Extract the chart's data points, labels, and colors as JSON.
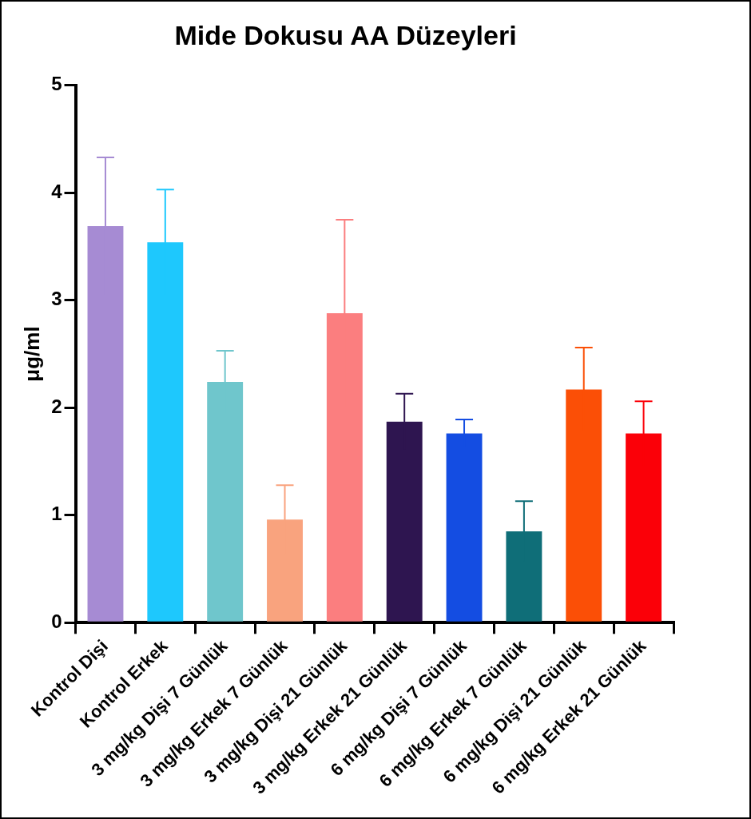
{
  "chart_data": {
    "type": "bar",
    "title": "Mide Dokusu AA Düzeyleri",
    "ylabel": "μg/ml",
    "categories": [
      "Kontrol Dişi",
      "Kontrol Erkek",
      "3 mg/kg Dişi 7 Günlük",
      "3 mg/kg Erkek 7 Günlük",
      "3 mg/kg Dişi 21 Günlük",
      "3 mg/kg Erkek 21 Günlük",
      "6 mg/kg Dişi 7 Günlük",
      "6 mg/kg Erkek 7 Günlük",
      "6 mg/kg Dişi 21 Günlük",
      "6 mg/kg Erkek 21 Günlük"
    ],
    "values": [
      3.69,
      3.54,
      2.24,
      0.96,
      2.88,
      1.87,
      1.76,
      0.85,
      2.17,
      1.76
    ],
    "errors": [
      0.64,
      0.49,
      0.29,
      0.32,
      0.87,
      0.26,
      0.13,
      0.28,
      0.39,
      0.3
    ],
    "colors": [
      "#a68bd3",
      "#1ec8fd",
      "#6fc6cc",
      "#f9a37e",
      "#fb7e7f",
      "#2e1550",
      "#144de2",
      "#0f6e78",
      "#fb4f06",
      "#fb0008"
    ],
    "ylim": [
      0,
      5
    ],
    "yticks": [
      0,
      1,
      2,
      3,
      4,
      5
    ],
    "grid": false,
    "legend": false
  }
}
